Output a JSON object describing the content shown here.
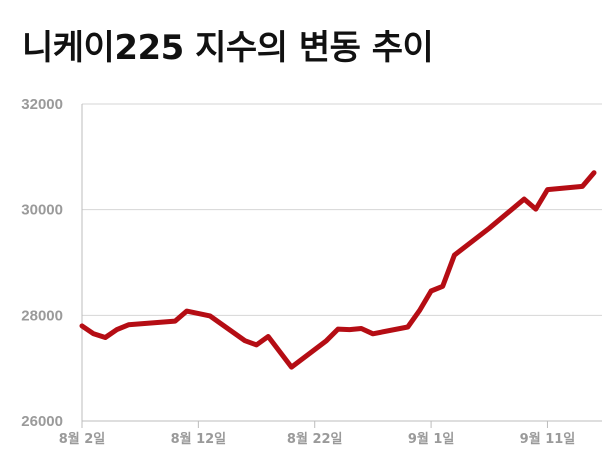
{
  "chart_data": {
    "type": "line",
    "title": "니케이225 지수의 변동 추이",
    "xlabel": "",
    "ylabel": "",
    "ylim": [
      26000,
      32000
    ],
    "yticks": [
      26000,
      28000,
      30000,
      32000
    ],
    "xticks": [
      {
        "x": 0,
        "label": "8월 2일"
      },
      {
        "x": 10,
        "label": "8월 12일"
      },
      {
        "x": 20,
        "label": "8월 22일"
      },
      {
        "x": 30,
        "label": "9월 1일"
      },
      {
        "x": 40,
        "label": "9월 11일"
      }
    ],
    "xlim": [
      0,
      44
    ],
    "grid": true,
    "line_color": "#b50d14",
    "series": [
      {
        "name": "",
        "x": [
          0,
          1,
          2,
          3,
          4,
          8,
          9,
          11,
          14,
          15,
          16,
          18,
          21,
          22,
          23,
          24,
          25,
          28,
          29,
          30,
          31,
          32,
          35,
          38,
          39,
          40,
          43,
          44
        ],
        "y": [
          27800,
          27650,
          27580,
          27730,
          27820,
          27890,
          28080,
          27990,
          27520,
          27440,
          27600,
          27020,
          27520,
          27740,
          27730,
          27750,
          27650,
          27780,
          28090,
          28460,
          28550,
          29140,
          29650,
          30200,
          30010,
          30380,
          30440,
          30700
        ]
      }
    ]
  }
}
